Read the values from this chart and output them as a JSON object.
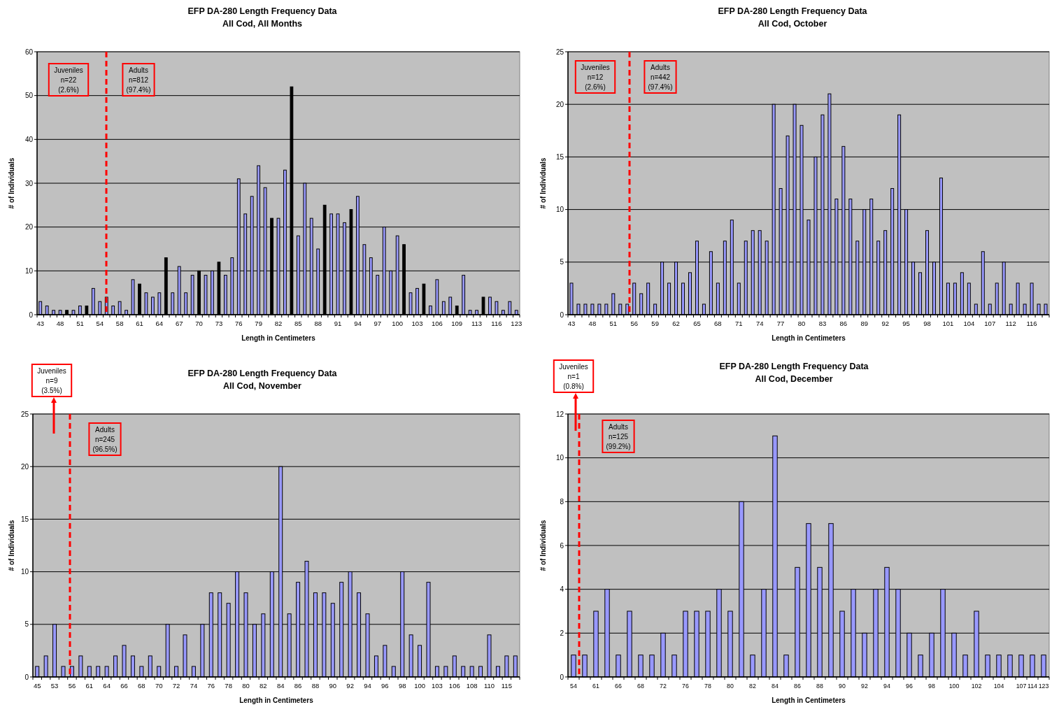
{
  "chart_data": [
    {
      "type": "bar",
      "title": "EFP DA-280 Length Frequency Data",
      "subtitle": "All Cod, All Months",
      "xlabel": "Length in Centimeters",
      "ylabel": "# of Individuals",
      "categories": [
        "43",
        null,
        null,
        "48",
        null,
        null,
        "51",
        null,
        null,
        "54",
        null,
        null,
        "58",
        null,
        null,
        "61",
        null,
        null,
        "64",
        null,
        null,
        "67",
        null,
        null,
        "70",
        null,
        null,
        "73",
        null,
        null,
        "76",
        null,
        null,
        "79",
        null,
        null,
        "82",
        null,
        null,
        "85",
        null,
        null,
        "88",
        null,
        null,
        "91",
        null,
        null,
        "94",
        null,
        null,
        "97",
        null,
        null,
        "100",
        null,
        null,
        "103",
        null,
        null,
        "106",
        null,
        null,
        "109",
        null,
        null,
        "113",
        null,
        null,
        "116",
        null,
        null,
        "123"
      ],
      "values": [
        3,
        2,
        1,
        1,
        1,
        1,
        2,
        2,
        6,
        3,
        4,
        2,
        3,
        1,
        8,
        7,
        5,
        4,
        5,
        13,
        5,
        11,
        5,
        9,
        10,
        9,
        10,
        12,
        9,
        13,
        31,
        23,
        27,
        34,
        29,
        22,
        22,
        33,
        52,
        18,
        30,
        22,
        15,
        25,
        23,
        23,
        21,
        24,
        27,
        16,
        13,
        9,
        20,
        10,
        18,
        16,
        5,
        6,
        7,
        2,
        8,
        3,
        4,
        2,
        9,
        1,
        1,
        4,
        4,
        3,
        1,
        3,
        1
      ],
      "colors": [
        "#9999ff",
        "#9999ff",
        "#9999ff",
        "#9999ff",
        "#000000",
        "#9999ff",
        "#9999ff",
        "#000000",
        "#9999ff",
        "#9999ff",
        "#9999ff",
        "#9999ff",
        "#9999ff",
        "#9999ff",
        "#9999ff",
        "#000000",
        "#9999ff",
        "#9999ff",
        "#9999ff",
        "#000000",
        "#9999ff",
        "#9999ff",
        "#9999ff",
        "#9999ff",
        "#000000",
        "#9999ff",
        "#9999ff",
        "#000000",
        "#9999ff",
        "#9999ff",
        "#9999ff",
        "#9999ff",
        "#9999ff",
        "#9999ff",
        "#9999ff",
        "#000000",
        "#9999ff",
        "#9999ff",
        "#000000",
        "#9999ff",
        "#9999ff",
        "#9999ff",
        "#9999ff",
        "#000000",
        "#9999ff",
        "#9999ff",
        "#9999ff",
        "#000000",
        "#9999ff",
        "#9999ff",
        "#9999ff",
        "#9999ff",
        "#9999ff",
        "#9999ff",
        "#9999ff",
        "#000000",
        "#9999ff",
        "#9999ff",
        "#000000",
        "#9999ff",
        "#9999ff",
        "#9999ff",
        "#9999ff",
        "#000000",
        "#9999ff",
        "#9999ff",
        "#9999ff",
        "#000000",
        "#9999ff",
        "#9999ff",
        "#9999ff",
        "#9999ff",
        "#9999ff"
      ],
      "ylim": [
        0,
        60
      ],
      "yticks": [
        0,
        10,
        20,
        30,
        40,
        50,
        60
      ],
      "grid": "y",
      "annotations": [
        "Juveniles\nn=22\n(2.6%)",
        "Adults\nn=812\n(97.4%)"
      ]
    },
    {
      "type": "bar",
      "title": "EFP DA-280 Length Frequency Data",
      "subtitle": "All Cod, October",
      "xlabel": "Length in Centimeters",
      "ylabel": "# of Individuals",
      "categories": [
        "43",
        null,
        null,
        "48",
        null,
        null,
        "51",
        null,
        null,
        "56",
        null,
        null,
        "59",
        null,
        null,
        "62",
        null,
        null,
        "65",
        null,
        null,
        "68",
        null,
        null,
        "71",
        null,
        null,
        "74",
        null,
        null,
        "77",
        null,
        null,
        "80",
        null,
        null,
        "83",
        null,
        null,
        "86",
        null,
        null,
        "89",
        null,
        null,
        "92",
        null,
        null,
        "95",
        null,
        null,
        "98",
        null,
        null,
        "101",
        null,
        null,
        "104",
        null,
        null,
        "107",
        null,
        null,
        "112",
        null,
        null,
        "116",
        null,
        null
      ],
      "values": [
        3,
        1,
        1,
        1,
        1,
        1,
        2,
        1,
        1,
        3,
        2,
        3,
        1,
        5,
        3,
        5,
        3,
        4,
        7,
        1,
        6,
        3,
        7,
        9,
        3,
        7,
        8,
        8,
        7,
        20,
        12,
        17,
        20,
        18,
        9,
        15,
        19,
        21,
        11,
        16,
        11,
        7,
        10,
        11,
        7,
        8,
        12,
        19,
        10,
        5,
        4,
        8,
        5,
        13,
        3,
        3,
        4,
        3,
        1,
        6,
        1,
        3,
        5,
        1,
        3,
        1,
        3,
        1,
        1
      ],
      "color": "#9999ff",
      "ylim": [
        0,
        25
      ],
      "yticks": [
        0,
        5,
        10,
        15,
        20,
        25
      ],
      "grid": "y",
      "annotations": [
        "Juveniles\nn=12\n(2.6%)",
        "Adults\nn=442\n(97.4%)"
      ]
    },
    {
      "type": "bar",
      "title": "EFP DA-280 Length Frequency Data",
      "subtitle": "All Cod, November",
      "xlabel": "Length in Centimeters",
      "ylabel": "# of Individuals",
      "categories": [
        "45",
        null,
        "53",
        null,
        "56",
        null,
        "61",
        null,
        "64",
        null,
        "66",
        null,
        "68",
        null,
        "70",
        null,
        "72",
        null,
        "74",
        null,
        "76",
        null,
        "78",
        null,
        "80",
        null,
        "82",
        null,
        "84",
        null,
        "86",
        null,
        "88",
        null,
        "90",
        null,
        "92",
        null,
        "94",
        null,
        "96",
        null,
        "98",
        null,
        "100",
        null,
        "103",
        null,
        "106",
        null,
        "108",
        null,
        "110",
        null,
        "115",
        null
      ],
      "values": [
        1,
        2,
        5,
        1,
        1,
        2,
        1,
        1,
        1,
        2,
        3,
        2,
        1,
        2,
        1,
        5,
        1,
        4,
        1,
        5,
        8,
        8,
        7,
        10,
        8,
        5,
        6,
        10,
        20,
        6,
        9,
        11,
        8,
        8,
        7,
        9,
        10,
        8,
        6,
        2,
        3,
        1,
        10,
        4,
        3,
        9,
        1,
        1,
        2,
        1,
        1,
        1,
        4,
        1,
        2,
        2
      ],
      "color": "#9999ff",
      "ylim": [
        0,
        25
      ],
      "yticks": [
        0,
        5,
        10,
        15,
        20,
        25
      ],
      "grid": "y",
      "annotations": [
        "Juveniles\nn=9\n(3.5%)",
        "Adults\nn=245\n(96.5%)"
      ]
    },
    {
      "type": "bar",
      "title": "EFP DA-280 Length Frequency Data",
      "subtitle": "All Cod, December",
      "xlabel": "Length in Centimeters",
      "ylabel": "# of Individuals",
      "categories": [
        "54",
        null,
        "61",
        null,
        "66",
        null,
        "68",
        null,
        "72",
        null,
        "76",
        null,
        "78",
        null,
        "80",
        null,
        "82",
        null,
        "84",
        null,
        "86",
        null,
        "88",
        null,
        "90",
        null,
        "92",
        null,
        "94",
        null,
        "96",
        null,
        "98",
        null,
        "100",
        null,
        "102",
        null,
        "104",
        null,
        "107",
        "114",
        "123"
      ],
      "values": [
        1,
        1,
        3,
        4,
        1,
        3,
        1,
        1,
        2,
        1,
        3,
        3,
        3,
        4,
        3,
        8,
        1,
        4,
        11,
        1,
        5,
        7,
        5,
        7,
        3,
        4,
        2,
        4,
        5,
        4,
        2,
        1,
        2,
        4,
        2,
        1,
        3,
        1,
        1,
        1,
        1,
        1,
        1
      ],
      "color": "#9999ff",
      "ylim": [
        0,
        12
      ],
      "yticks": [
        0,
        2,
        4,
        6,
        8,
        10,
        12
      ],
      "grid": "y",
      "annotations": [
        "Juveniles\nn=1\n(0.8%)",
        "Adults\nn=125\n(99.2%)"
      ]
    }
  ]
}
